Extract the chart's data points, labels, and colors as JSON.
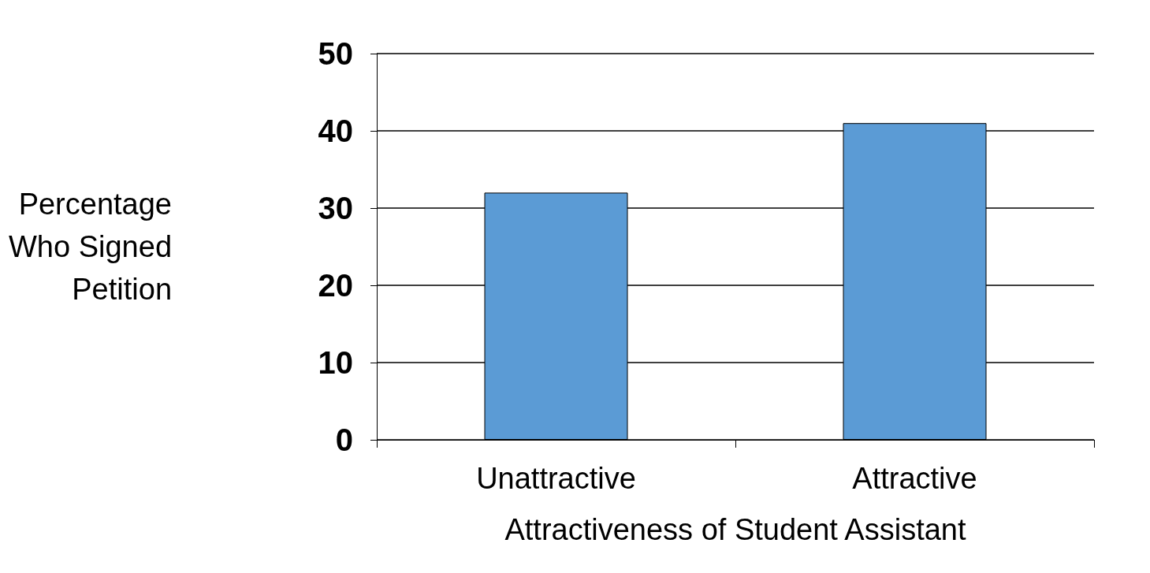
{
  "chart_data": {
    "type": "bar",
    "xlabel": "Attractiveness of Student Assistant",
    "ylabel": "Percentage\nWho Signed\nPetition",
    "categories": [
      "Unattractive",
      "Attractive"
    ],
    "values": [
      32,
      41
    ],
    "color": "#5b9bd5",
    "ylim": [
      0,
      50
    ],
    "yticks": [
      0,
      10,
      20,
      30,
      40,
      50
    ],
    "grid": "y"
  }
}
